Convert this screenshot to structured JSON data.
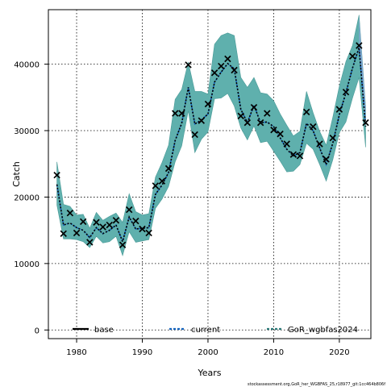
{
  "chart_data": {
    "type": "line",
    "xlabel": "Years",
    "ylabel": "Catch",
    "xlim": [
      1975.7,
      2024.8
    ],
    "ylim": [
      -1300,
      48200
    ],
    "x_ticks": [
      1980,
      1990,
      2000,
      2010,
      2020
    ],
    "y_ticks": [
      0,
      10000,
      20000,
      30000,
      40000
    ],
    "grid": true,
    "legend": {
      "placement": "bottom",
      "entries": [
        "base",
        "current",
        "GoR_wgbfas2024"
      ]
    },
    "footer": "stockassessment.org,GoR_her_WGBFAS_25,r18977_git:1cc464b806f",
    "colors": {
      "band": "#5fb0ad",
      "band_edge": "#4a9a97",
      "mean": "#000000",
      "current_line": "#1565c0",
      "upper_tip": "#8aa8d8"
    },
    "x": [
      1977,
      1978,
      1979,
      1980,
      1981,
      1982,
      1983,
      1984,
      1985,
      1986,
      1987,
      1988,
      1989,
      1990,
      1991,
      1992,
      1993,
      1994,
      1995,
      1996,
      1997,
      1998,
      1999,
      2000,
      2001,
      2002,
      2003,
      2004,
      2005,
      2006,
      2007,
      2008,
      2009,
      2010,
      2011,
      2012,
      2013,
      2014,
      2015,
      2016,
      2017,
      2018,
      2019,
      2020,
      2021,
      2022,
      2023,
      2024
    ],
    "observed": [
      23300,
      14500,
      17600,
      14600,
      16300,
      13200,
      16200,
      15500,
      15800,
      16500,
      12800,
      18100,
      16400,
      15200,
      14600,
      21700,
      22400,
      24300,
      32600,
      32600,
      39900,
      29400,
      31500,
      34000,
      38700,
      39700,
      40800,
      39100,
      32200,
      31200,
      33500,
      31200,
      32600,
      30100,
      29500,
      28000,
      26400,
      26200,
      32800,
      30600,
      28000,
      25700,
      28900,
      33200,
      35800,
      41200,
      42800,
      31200
    ],
    "series": [
      {
        "name": "base",
        "mean": [
          21900,
          15800,
          16100,
          15400,
          15000,
          13900,
          15400,
          14500,
          15000,
          15800,
          13300,
          17000,
          15200,
          15300,
          15400,
          20400,
          21800,
          23700,
          28500,
          31100,
          36500,
          31000,
          31600,
          32500,
          37300,
          38800,
          40100,
          39300,
          33200,
          31200,
          33800,
          31200,
          31300,
          30600,
          28900,
          27200,
          26200,
          26700,
          31100,
          30000,
          27400,
          24900,
          28100,
          32400,
          35700,
          39400,
          42500,
          30600
        ],
        "lower": [
          18800,
          13700,
          13700,
          13600,
          13300,
          12400,
          14100,
          13100,
          13300,
          14100,
          11200,
          14800,
          13200,
          13400,
          13600,
          18300,
          19700,
          21600,
          25300,
          27700,
          33000,
          26700,
          28700,
          29800,
          34800,
          34900,
          35600,
          33700,
          30400,
          28600,
          30700,
          28200,
          28400,
          26900,
          25400,
          23800,
          23900,
          24900,
          28100,
          27200,
          24900,
          22400,
          25600,
          29700,
          31300,
          34900,
          38000,
          27500
        ],
        "upper": [
          25300,
          18900,
          18600,
          17300,
          17400,
          15300,
          17700,
          16500,
          17100,
          17600,
          16200,
          20500,
          17800,
          17300,
          17500,
          23000,
          25200,
          27800,
          34700,
          36200,
          40300,
          35900,
          35900,
          35500,
          43000,
          44300,
          44700,
          44300,
          38000,
          36500,
          38000,
          35700,
          35500,
          34500,
          32500,
          30800,
          29200,
          29900,
          35900,
          32700,
          29900,
          27800,
          32000,
          36700,
          40400,
          42800,
          47400,
          33600
        ]
      }
    ]
  }
}
